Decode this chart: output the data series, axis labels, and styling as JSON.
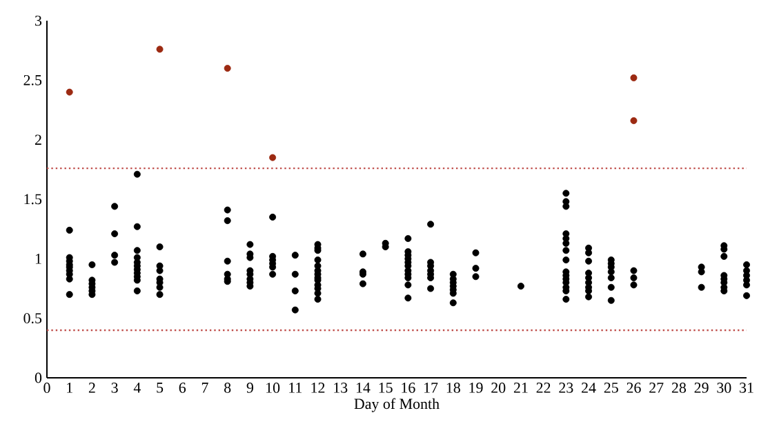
{
  "chart_data": {
    "type": "scatter",
    "xlabel": "Day of Month",
    "xlim": [
      0,
      31
    ],
    "xticks": [
      0,
      1,
      2,
      3,
      4,
      5,
      6,
      7,
      8,
      9,
      10,
      11,
      12,
      13,
      14,
      15,
      16,
      17,
      18,
      19,
      20,
      21,
      22,
      23,
      24,
      25,
      26,
      27,
      28,
      29,
      30,
      31
    ],
    "ylim": [
      0,
      3
    ],
    "yticks": [
      0,
      0.5,
      1,
      1.5,
      2,
      2.5,
      3
    ],
    "grid": false,
    "marker": "circle",
    "ref_lines": [
      {
        "axis": "y",
        "value": 1.76,
        "color": "#c0504d",
        "line_style": "dotted"
      },
      {
        "axis": "y",
        "value": 0.4,
        "color": "#c0504d",
        "line_style": "dotted"
      }
    ],
    "series": [
      {
        "color": "#000000",
        "x": [
          1,
          1,
          1,
          1,
          1,
          1,
          1,
          1,
          1,
          2,
          2,
          2,
          2,
          2,
          2,
          3,
          3,
          3,
          3,
          4,
          4,
          4,
          4,
          4,
          4,
          4,
          4,
          4,
          4,
          4,
          5,
          5,
          5,
          5,
          5,
          5,
          5,
          8,
          8,
          8,
          8,
          8,
          8,
          9,
          9,
          9,
          9,
          9,
          9,
          9,
          9,
          10,
          10,
          10,
          10,
          10,
          10,
          11,
          11,
          11,
          11,
          12,
          12,
          12,
          12,
          12,
          12,
          12,
          12,
          12,
          12,
          12,
          12,
          12,
          14,
          14,
          14,
          14,
          15,
          15,
          16,
          16,
          16,
          16,
          16,
          16,
          16,
          16,
          16,
          16,
          16,
          17,
          17,
          17,
          17,
          17,
          17,
          17,
          18,
          18,
          18,
          18,
          18,
          18,
          18,
          19,
          19,
          19,
          21,
          23,
          23,
          23,
          23,
          23,
          23,
          23,
          23,
          23,
          23,
          23,
          23,
          23,
          23,
          23,
          24,
          24,
          24,
          24,
          24,
          24,
          24,
          24,
          24,
          25,
          25,
          25,
          25,
          25,
          25,
          25,
          26,
          26,
          26,
          29,
          29,
          29,
          30,
          30,
          30,
          30,
          30,
          30,
          30,
          30,
          31,
          31,
          31,
          31,
          31,
          31
        ],
        "values": [
          1.24,
          1.01,
          0.98,
          0.95,
          0.93,
          0.9,
          0.87,
          0.83,
          0.7,
          0.95,
          0.82,
          0.79,
          0.76,
          0.73,
          0.7,
          1.44,
          1.21,
          1.03,
          0.97,
          1.71,
          1.27,
          1.07,
          1.01,
          0.97,
          0.94,
          0.91,
          0.88,
          0.85,
          0.82,
          0.73,
          1.1,
          0.94,
          0.9,
          0.83,
          0.8,
          0.76,
          0.7,
          1.41,
          1.32,
          0.98,
          0.87,
          0.83,
          0.81,
          1.12,
          1.04,
          1.01,
          0.9,
          0.87,
          0.83,
          0.8,
          0.77,
          1.35,
          1.02,
          0.99,
          0.96,
          0.93,
          0.87,
          1.03,
          0.87,
          0.73,
          0.57,
          1.12,
          1.09,
          1.07,
          0.99,
          0.94,
          0.9,
          0.87,
          0.84,
          0.82,
          0.78,
          0.75,
          0.71,
          0.66,
          1.04,
          0.89,
          0.87,
          0.79,
          1.13,
          1.1,
          1.17,
          1.06,
          1.03,
          1.0,
          0.97,
          0.94,
          0.9,
          0.87,
          0.84,
          0.78,
          0.67,
          1.29,
          0.97,
          0.94,
          0.9,
          0.87,
          0.84,
          0.75,
          0.87,
          0.83,
          0.8,
          0.77,
          0.74,
          0.71,
          0.63,
          1.05,
          0.92,
          0.85,
          0.77,
          1.55,
          1.48,
          1.44,
          1.21,
          1.17,
          1.13,
          1.07,
          0.99,
          0.89,
          0.86,
          0.83,
          0.8,
          0.76,
          0.73,
          0.66,
          1.09,
          1.05,
          0.98,
          0.88,
          0.84,
          0.8,
          0.76,
          0.73,
          0.68,
          0.99,
          0.96,
          0.93,
          0.89,
          0.84,
          0.76,
          0.65,
          0.9,
          0.84,
          0.78,
          0.93,
          0.89,
          0.76,
          1.11,
          1.08,
          1.02,
          0.86,
          0.83,
          0.8,
          0.76,
          0.73,
          0.95,
          0.9,
          0.86,
          0.82,
          0.78,
          0.69
        ]
      },
      {
        "color": "#9c2a12",
        "x": [
          1,
          5,
          8,
          10,
          26,
          26
        ],
        "values": [
          2.4,
          2.76,
          2.6,
          1.85,
          2.52,
          2.16
        ]
      }
    ]
  }
}
